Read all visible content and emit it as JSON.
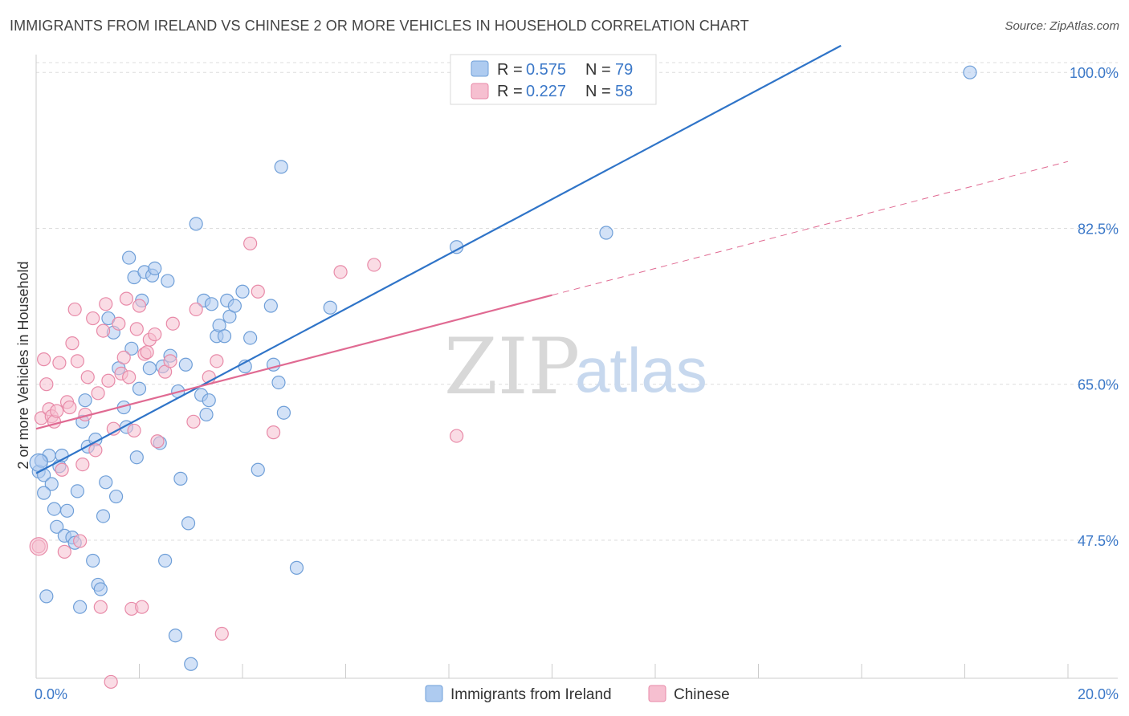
{
  "title": "IMMIGRANTS FROM IRELAND VS CHINESE 2 OR MORE VEHICLES IN HOUSEHOLD CORRELATION CHART",
  "source": "Source: ZipAtlas.com",
  "watermark": {
    "zip": "ZIP",
    "atlas": "atlas"
  },
  "colors": {
    "blue_fill": "#aecbf0",
    "blue_stroke": "#6f9fd8",
    "blue_line": "#2f74c8",
    "pink_fill": "#f6bfd0",
    "pink_stroke": "#e88aa8",
    "pink_line": "#e06a92",
    "grid": "#dddddd",
    "tick_text": "#3b78c8"
  },
  "legend": {
    "rows": [
      {
        "r_label": "R =",
        "r_value": "0.575",
        "n_label": "N =",
        "n_value": "79"
      },
      {
        "r_label": "R =",
        "r_value": "0.227",
        "n_label": "N =",
        "n_value": "58"
      }
    ]
  },
  "chart_data": {
    "type": "scatter",
    "xlabel": "",
    "ylabel": "2 or more Vehicles in Household",
    "xlim": [
      0.0,
      20.0
    ],
    "ylim": [
      32.0,
      102.0
    ],
    "x_tick_labels": [
      "0.0%",
      "20.0%"
    ],
    "y_ticks": [
      47.5,
      65.0,
      82.5,
      100.0
    ],
    "y_tick_labels": [
      "47.5%",
      "65.0%",
      "82.5%",
      "100.0%"
    ],
    "grid": true,
    "legend_position": "top-center",
    "series": [
      {
        "name": "Immigrants from Ireland",
        "color": "#aecbf0",
        "trend": {
          "x": [
            0.0,
            15.6
          ],
          "y": [
            55.0,
            103.0
          ],
          "dashed_extension": false
        },
        "points": [
          {
            "x": 0.05,
            "y": 55.2
          },
          {
            "x": 0.1,
            "y": 56.4
          },
          {
            "x": 0.15,
            "y": 54.8
          },
          {
            "x": 0.2,
            "y": 41.2
          },
          {
            "x": 0.25,
            "y": 57.0
          },
          {
            "x": 0.3,
            "y": 53.8
          },
          {
            "x": 0.35,
            "y": 51.0
          },
          {
            "x": 0.4,
            "y": 49.0
          },
          {
            "x": 0.45,
            "y": 55.8
          },
          {
            "x": 0.5,
            "y": 57.0
          },
          {
            "x": 0.55,
            "y": 48.0
          },
          {
            "x": 0.6,
            "y": 50.8
          },
          {
            "x": 0.7,
            "y": 47.8
          },
          {
            "x": 0.75,
            "y": 47.2
          },
          {
            "x": 0.8,
            "y": 53.0
          },
          {
            "x": 0.85,
            "y": 40.0
          },
          {
            "x": 0.9,
            "y": 60.8
          },
          {
            "x": 0.95,
            "y": 63.2
          },
          {
            "x": 1.0,
            "y": 58.0
          },
          {
            "x": 1.1,
            "y": 45.2
          },
          {
            "x": 1.15,
            "y": 58.8
          },
          {
            "x": 1.2,
            "y": 42.5
          },
          {
            "x": 1.25,
            "y": 42.0
          },
          {
            "x": 1.3,
            "y": 50.2
          },
          {
            "x": 1.35,
            "y": 54.0
          },
          {
            "x": 1.4,
            "y": 72.4
          },
          {
            "x": 1.5,
            "y": 70.8
          },
          {
            "x": 1.55,
            "y": 52.4
          },
          {
            "x": 1.6,
            "y": 66.8
          },
          {
            "x": 1.7,
            "y": 62.4
          },
          {
            "x": 1.75,
            "y": 60.2
          },
          {
            "x": 1.8,
            "y": 79.2
          },
          {
            "x": 1.85,
            "y": 69.0
          },
          {
            "x": 1.9,
            "y": 77.0
          },
          {
            "x": 1.95,
            "y": 56.8
          },
          {
            "x": 2.0,
            "y": 64.5
          },
          {
            "x": 2.05,
            "y": 74.4
          },
          {
            "x": 2.1,
            "y": 77.6
          },
          {
            "x": 2.2,
            "y": 66.8
          },
          {
            "x": 2.25,
            "y": 77.2
          },
          {
            "x": 2.3,
            "y": 78.0
          },
          {
            "x": 2.4,
            "y": 58.4
          },
          {
            "x": 2.45,
            "y": 67.0
          },
          {
            "x": 2.5,
            "y": 45.2
          },
          {
            "x": 2.55,
            "y": 76.6
          },
          {
            "x": 2.6,
            "y": 68.2
          },
          {
            "x": 2.7,
            "y": 36.8
          },
          {
            "x": 2.75,
            "y": 64.2
          },
          {
            "x": 2.8,
            "y": 54.4
          },
          {
            "x": 2.9,
            "y": 67.2
          },
          {
            "x": 2.95,
            "y": 49.4
          },
          {
            "x": 3.0,
            "y": 33.6
          },
          {
            "x": 3.1,
            "y": 83.0
          },
          {
            "x": 3.2,
            "y": 63.8
          },
          {
            "x": 3.25,
            "y": 74.4
          },
          {
            "x": 3.3,
            "y": 61.6
          },
          {
            "x": 3.35,
            "y": 63.2
          },
          {
            "x": 3.4,
            "y": 74.0
          },
          {
            "x": 3.5,
            "y": 70.4
          },
          {
            "x": 3.55,
            "y": 71.6
          },
          {
            "x": 3.65,
            "y": 70.4
          },
          {
            "x": 3.7,
            "y": 74.4
          },
          {
            "x": 3.75,
            "y": 72.6
          },
          {
            "x": 3.85,
            "y": 73.8
          },
          {
            "x": 4.0,
            "y": 75.4
          },
          {
            "x": 4.05,
            "y": 67.0
          },
          {
            "x": 4.15,
            "y": 70.2
          },
          {
            "x": 4.3,
            "y": 55.4
          },
          {
            "x": 4.55,
            "y": 73.8
          },
          {
            "x": 4.6,
            "y": 67.2
          },
          {
            "x": 4.7,
            "y": 65.2
          },
          {
            "x": 4.8,
            "y": 61.8
          },
          {
            "x": 4.75,
            "y": 89.4
          },
          {
            "x": 5.05,
            "y": 44.4
          },
          {
            "x": 5.7,
            "y": 73.6
          },
          {
            "x": 8.15,
            "y": 80.4
          },
          {
            "x": 11.05,
            "y": 82.0
          },
          {
            "x": 18.1,
            "y": 100.0
          },
          {
            "x": 0.15,
            "y": 52.8
          }
        ]
      },
      {
        "name": "Chinese",
        "color": "#f6bfd0",
        "trend": {
          "x": [
            0.0,
            10.0
          ],
          "y": [
            60.0,
            75.0
          ],
          "dashed_to": [
            20.0,
            90.0
          ],
          "dashed_extension": true
        },
        "points": [
          {
            "x": 0.05,
            "y": 46.8
          },
          {
            "x": 0.1,
            "y": 61.2
          },
          {
            "x": 0.15,
            "y": 67.8
          },
          {
            "x": 0.2,
            "y": 65.0
          },
          {
            "x": 0.25,
            "y": 62.2
          },
          {
            "x": 0.3,
            "y": 61.4
          },
          {
            "x": 0.35,
            "y": 60.8
          },
          {
            "x": 0.4,
            "y": 62.0
          },
          {
            "x": 0.45,
            "y": 67.4
          },
          {
            "x": 0.5,
            "y": 55.4
          },
          {
            "x": 0.55,
            "y": 46.2
          },
          {
            "x": 0.6,
            "y": 63.0
          },
          {
            "x": 0.65,
            "y": 62.4
          },
          {
            "x": 0.7,
            "y": 69.6
          },
          {
            "x": 0.75,
            "y": 73.4
          },
          {
            "x": 0.8,
            "y": 67.6
          },
          {
            "x": 0.85,
            "y": 47.4
          },
          {
            "x": 0.9,
            "y": 56.0
          },
          {
            "x": 0.95,
            "y": 61.6
          },
          {
            "x": 1.0,
            "y": 65.8
          },
          {
            "x": 1.1,
            "y": 72.4
          },
          {
            "x": 1.15,
            "y": 57.6
          },
          {
            "x": 1.2,
            "y": 64.0
          },
          {
            "x": 1.25,
            "y": 40.0
          },
          {
            "x": 1.3,
            "y": 71.0
          },
          {
            "x": 1.35,
            "y": 74.0
          },
          {
            "x": 1.4,
            "y": 65.4
          },
          {
            "x": 1.45,
            "y": 31.6
          },
          {
            "x": 1.5,
            "y": 60.0
          },
          {
            "x": 1.6,
            "y": 71.8
          },
          {
            "x": 1.65,
            "y": 66.2
          },
          {
            "x": 1.7,
            "y": 68.0
          },
          {
            "x": 1.75,
            "y": 74.6
          },
          {
            "x": 1.8,
            "y": 65.8
          },
          {
            "x": 1.85,
            "y": 39.8
          },
          {
            "x": 1.9,
            "y": 59.8
          },
          {
            "x": 1.95,
            "y": 71.2
          },
          {
            "x": 2.0,
            "y": 73.8
          },
          {
            "x": 2.05,
            "y": 40.0
          },
          {
            "x": 2.1,
            "y": 68.4
          },
          {
            "x": 2.15,
            "y": 68.6
          },
          {
            "x": 2.2,
            "y": 70.0
          },
          {
            "x": 2.3,
            "y": 70.6
          },
          {
            "x": 2.35,
            "y": 58.6
          },
          {
            "x": 2.5,
            "y": 66.4
          },
          {
            "x": 2.6,
            "y": 67.6
          },
          {
            "x": 2.65,
            "y": 71.8
          },
          {
            "x": 3.05,
            "y": 60.8
          },
          {
            "x": 3.1,
            "y": 73.4
          },
          {
            "x": 3.35,
            "y": 65.8
          },
          {
            "x": 3.5,
            "y": 67.6
          },
          {
            "x": 3.6,
            "y": 37.0
          },
          {
            "x": 4.15,
            "y": 80.8
          },
          {
            "x": 4.3,
            "y": 75.4
          },
          {
            "x": 4.6,
            "y": 59.6
          },
          {
            "x": 5.9,
            "y": 77.6
          },
          {
            "x": 6.55,
            "y": 78.4
          },
          {
            "x": 8.15,
            "y": 59.2
          }
        ]
      }
    ]
  },
  "bottom_legend": [
    {
      "label": "Immigrants from Ireland"
    },
    {
      "label": "Chinese"
    }
  ]
}
